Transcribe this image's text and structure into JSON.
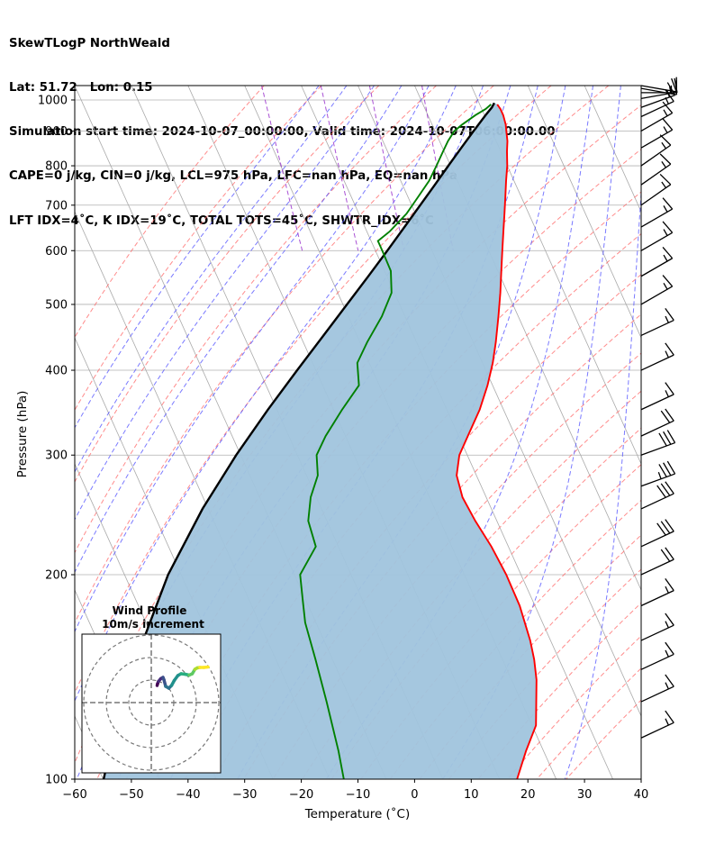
{
  "header": {
    "line1": "SkewTLogP NorthWeald",
    "line2": "Lat: 51.72   Lon: 0.15",
    "line3": "Simulation start time: 2024-10-07_00:00:00, Valid time: 2024-10-07T06:00:00.00",
    "line4": "CAPE=0 j/kg, CIN=0 j/kg, LCL=975 hPa, LFC=nan hPa, EQ=nan hPa",
    "line5": "LFT IDX=4˚C, K IDX=19˚C, TOTAL TOTS=45˚C, SHWTR_IDX=6˚C"
  },
  "chart_data": [
    {
      "type": "line",
      "subtype": "skew-t log-p diagram",
      "xlabel": "Temperature (˚C)",
      "ylabel": "Pressure (hPa)",
      "xlim": [
        -60,
        40
      ],
      "ylim": [
        1050,
        100
      ],
      "y_scale": "log",
      "x_ticks": [
        "−60",
        "−50",
        "−40",
        "−30",
        "−20",
        "−10",
        "0",
        "10",
        "20",
        "30",
        "40"
      ],
      "x_tick_values": [
        -60,
        -50,
        -40,
        -30,
        -20,
        -10,
        0,
        10,
        20,
        30,
        40
      ],
      "y_ticks": [
        "100",
        "200",
        "300",
        "400",
        "500",
        "600",
        "700",
        "800",
        "900",
        "1000"
      ],
      "y_tick_values": [
        100,
        200,
        300,
        400,
        500,
        600,
        700,
        800,
        900,
        1000
      ],
      "grid": true,
      "colors": {
        "temperature": "#ff0000",
        "dewpoint": "#008000",
        "parcel": "#000000",
        "cape_fill": "#a0c4dd",
        "dry_adiabat": "#ff6666",
        "moist_adiabat": "#4d4dff",
        "mixing_ratio": "#9a32cd",
        "isotherm": "#aaaaaa"
      },
      "series": [
        {
          "key": "temperature",
          "pressure": [
            985,
            970,
            950,
            920,
            900,
            870,
            840,
            800,
            760,
            720,
            680,
            640,
            600,
            560,
            520,
            480,
            440,
            410,
            380,
            350,
            320,
            300,
            280,
            260,
            240,
            220,
            200,
            180,
            160,
            150,
            140,
            120,
            110,
            100
          ],
          "values": [
            13.1,
            13.3,
            13.3,
            13.0,
            12.6,
            12.0,
            11.1,
            10.0,
            8.6,
            7.2,
            5.7,
            4.1,
            2.4,
            0.6,
            -1.3,
            -3.5,
            -6.0,
            -8.2,
            -10.9,
            -14.2,
            -18.4,
            -21.4,
            -23.5,
            -24.2,
            -23.8,
            -23.0,
            -22.6,
            -22.7,
            -23.6,
            -24.4,
            -25.6,
            -29.3,
            -33.1,
            -36.9
          ]
        },
        {
          "key": "dewpoint",
          "pressure": [
            985,
            970,
            950,
            920,
            900,
            870,
            840,
            800,
            760,
            720,
            680,
            640,
            620,
            600,
            560,
            520,
            480,
            440,
            410,
            380,
            350,
            320,
            300,
            280,
            260,
            240,
            220,
            200,
            185,
            170,
            150,
            130,
            110,
            100
          ],
          "values": [
            12.0,
            10.7,
            8.4,
            5.3,
            3.4,
            1.5,
            -0.2,
            -2.5,
            -5.0,
            -8.2,
            -11.6,
            -16.0,
            -18.8,
            -18.8,
            -18.9,
            -20.5,
            -24.1,
            -28.7,
            -32.1,
            -33.6,
            -38.5,
            -43.5,
            -46.6,
            -48.0,
            -51.0,
            -53.3,
            -54.0,
            -59.0,
            -60.4,
            -61.9,
            -63.0,
            -64.4,
            -66.2,
            -67.5
          ]
        },
        {
          "key": "parcel",
          "pressure": [
            990,
            975,
            950,
            900,
            850,
            800,
            750,
            700,
            650,
            600,
            550,
            500,
            450,
            400,
            350,
            300,
            250,
            200,
            150,
            120,
            100
          ],
          "values": [
            12.7,
            11.9,
            10.2,
            6.8,
            3.3,
            -0.4,
            -4.3,
            -8.5,
            -13.0,
            -17.9,
            -23.3,
            -29.3,
            -35.9,
            -43.3,
            -51.6,
            -60.8,
            -71.0,
            -82.3,
            -94.7,
            -103.5,
            -109.9
          ]
        }
      ],
      "wind_barbs": {
        "pressure": [
          1050,
          1040,
          1025,
          1005,
          975,
          945,
          900,
          850,
          800,
          750,
          700,
          650,
          600,
          550,
          500,
          450,
          400,
          350,
          320,
          300,
          270,
          250,
          220,
          200,
          180,
          160,
          145,
          130,
          115
        ],
        "speed_kt": [
          10,
          10,
          15,
          15,
          15,
          15,
          15,
          15,
          15,
          15,
          15,
          15,
          15,
          15,
          15,
          15,
          15,
          15,
          20,
          30,
          35,
          30,
          30,
          20,
          15,
          15,
          15,
          15,
          15
        ],
        "direction_deg": [
          280,
          280,
          270,
          260,
          250,
          245,
          240,
          240,
          235,
          235,
          235,
          240,
          240,
          240,
          240,
          245,
          245,
          245,
          245,
          250,
          250,
          245,
          245,
          245,
          245,
          245,
          245,
          245,
          245
        ]
      }
    },
    {
      "type": "scatter",
      "subtype": "hodograph",
      "title": "Wind Profile",
      "subtitle": "10m/s increment",
      "rings_ms": [
        10,
        20,
        30
      ],
      "u_ms": [
        2.6,
        2.8,
        3.2,
        4.2,
        5.2,
        5.6,
        6.4,
        7.8,
        9.0,
        10.2,
        11.8,
        13.2,
        15.0,
        16.8,
        18.2,
        19.4,
        20.4,
        21.6,
        23.4,
        25.2
      ],
      "v_ms": [
        7.6,
        8.4,
        9.4,
        10.6,
        11.2,
        10.2,
        7.2,
        6.4,
        7.6,
        9.8,
        12.0,
        12.8,
        12.6,
        12.2,
        12.8,
        14.8,
        15.4,
        15.6,
        15.6,
        15.8
      ]
    }
  ]
}
